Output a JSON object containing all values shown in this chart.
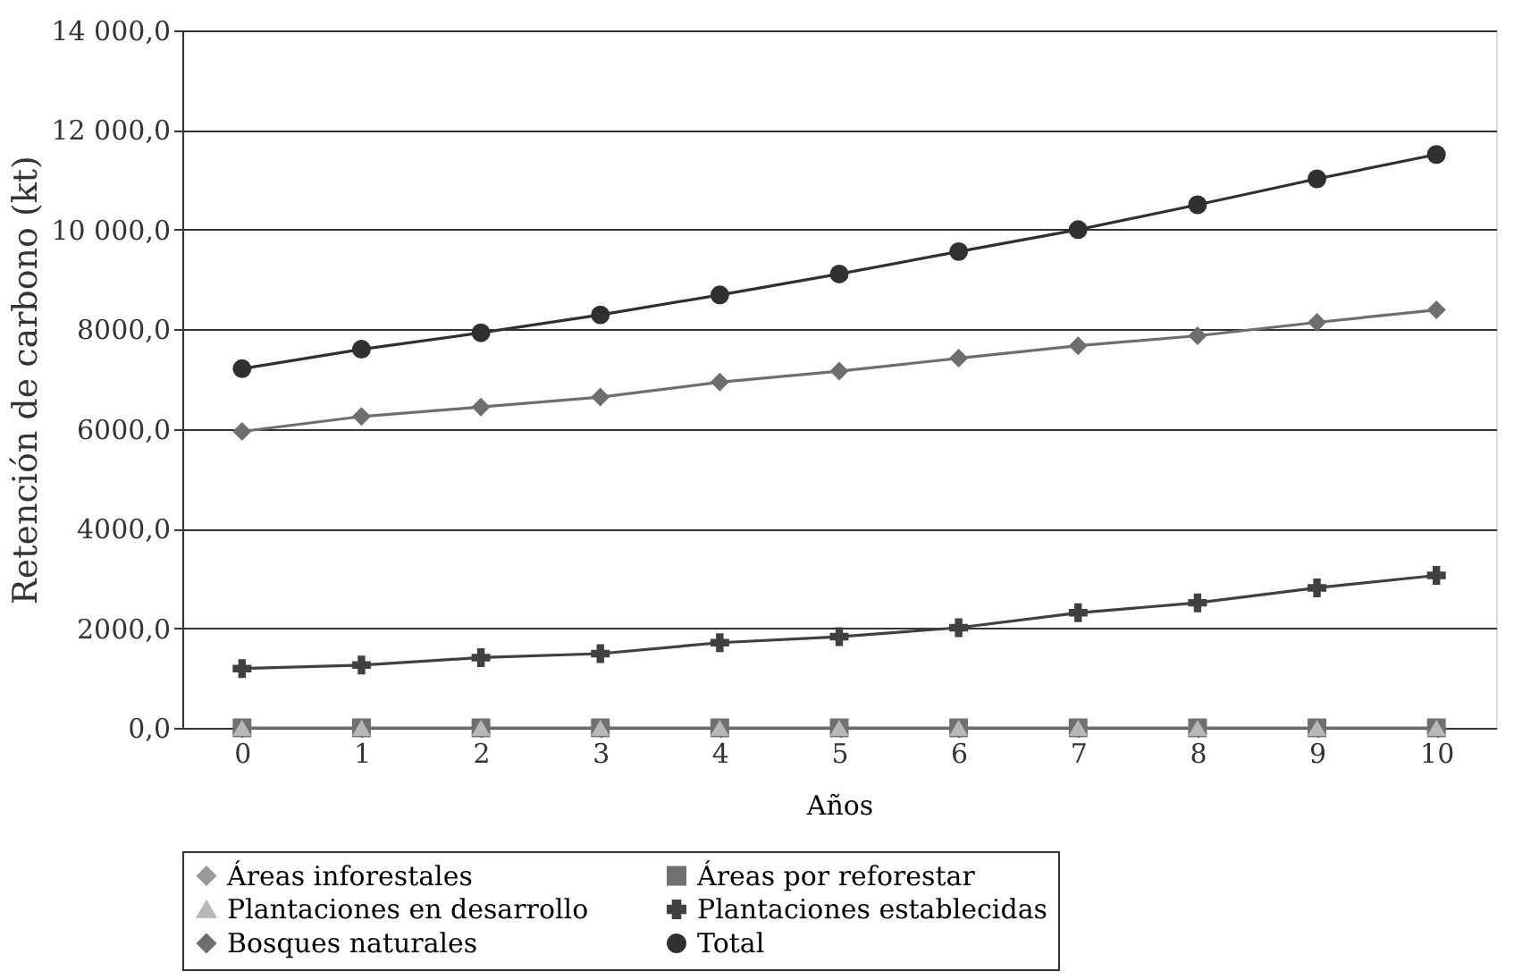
{
  "chart_data": {
    "type": "line",
    "xlabel": "Años",
    "ylabel": "Retención de carbono (kt)",
    "categories": [
      "0",
      "1",
      "2",
      "3",
      "4",
      "5",
      "6",
      "7",
      "8",
      "9",
      "10"
    ],
    "ylim": [
      0,
      14000
    ],
    "yticks": [
      {
        "value": 0,
        "label": "0,0"
      },
      {
        "value": 2000,
        "label": "2000,0"
      },
      {
        "value": 4000,
        "label": "4000,0"
      },
      {
        "value": 6000,
        "label": "6000,0"
      },
      {
        "value": 8000,
        "label": "8000,0"
      },
      {
        "value": 10000,
        "label": "10 000,0"
      },
      {
        "value": 12000,
        "label": "12 000,0"
      },
      {
        "value": 14000,
        "label": "14 000,0"
      }
    ],
    "grid": "y",
    "legend": "bottom",
    "series": [
      {
        "name": "Áreas inforestales",
        "color": "#9a9a9a",
        "marker": "diamond",
        "values": [
          null,
          null,
          null,
          null,
          null,
          null,
          null,
          null,
          null,
          null,
          null
        ]
      },
      {
        "name": "Áreas por reforestar",
        "color": "#707070",
        "marker": "square",
        "values": [
          0,
          0,
          0,
          0,
          0,
          0,
          0,
          0,
          0,
          0,
          0
        ]
      },
      {
        "name": "Plantaciones en desarrollo",
        "type": "scatter",
        "color": "#b8b8b8",
        "marker": "triangle",
        "values": [
          0,
          0,
          0,
          0,
          0,
          0,
          0,
          0,
          0,
          0,
          0
        ]
      },
      {
        "name": "Plantaciones establecidas",
        "color": "#404040",
        "marker": "cross",
        "values": [
          1190,
          1260,
          1410,
          1490,
          1710,
          1830,
          2010,
          2310,
          2510,
          2810,
          3060
        ]
      },
      {
        "name": "Bosques naturales",
        "color": "#6e6e6e",
        "marker": "diamond",
        "values": [
          5950,
          6250,
          6440,
          6640,
          6940,
          7160,
          7420,
          7670,
          7870,
          8140,
          8390
        ]
      },
      {
        "name": "Total",
        "color": "#303030",
        "marker": "circle",
        "values": [
          7210,
          7600,
          7930,
          8290,
          8690,
          9110,
          9560,
          10000,
          10500,
          11020,
          11510
        ]
      }
    ]
  }
}
